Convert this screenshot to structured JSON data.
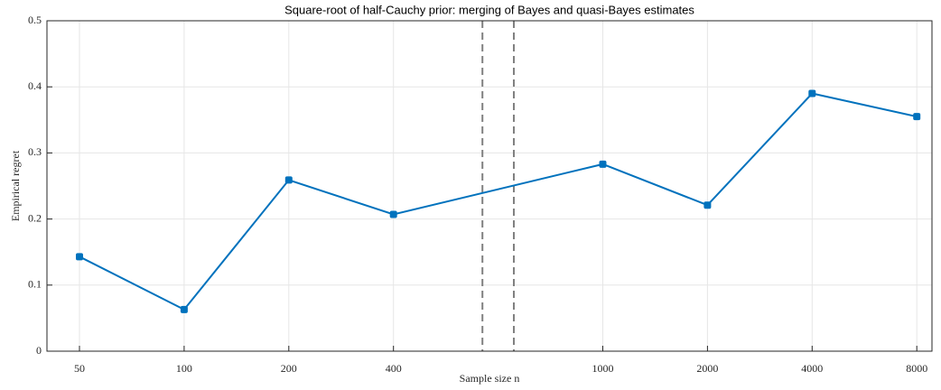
{
  "chart_data": {
    "type": "line",
    "title": "Square-root of half-Cauchy prior: merging of Bayes and quasi-Bayes estimates",
    "xlabel": "Sample size n",
    "ylabel": "Empirical regret",
    "categories": [
      "50",
      "100",
      "200",
      "400",
      "1000",
      "2000",
      "4000",
      "8000"
    ],
    "axis_break_after": 3,
    "series": [
      {
        "name": "Empirical regret",
        "color": "#0072bd",
        "values": [
          0.143,
          0.063,
          0.259,
          0.207,
          0.283,
          0.221,
          0.39,
          0.355
        ]
      }
    ],
    "ylim": [
      0,
      0.5
    ],
    "yticks": [
      0,
      0.1,
      0.2,
      0.3,
      0.4,
      0.5
    ],
    "grid": true
  }
}
